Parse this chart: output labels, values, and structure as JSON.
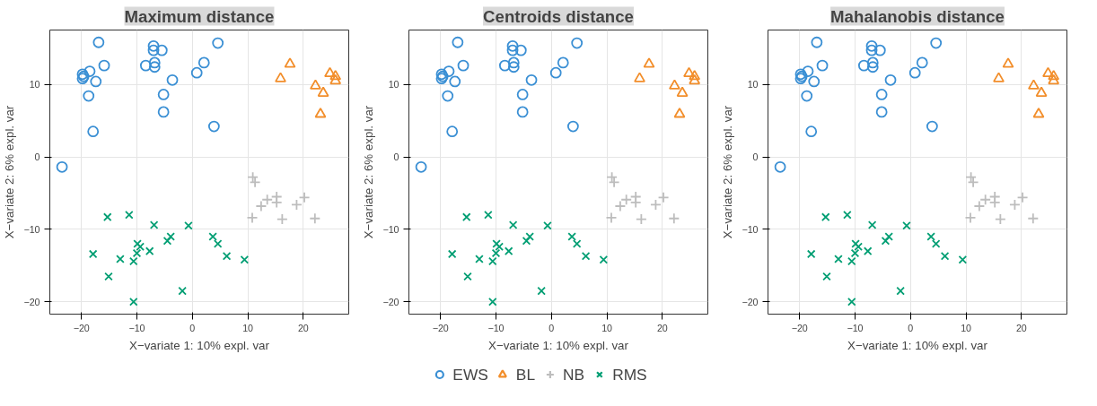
{
  "chart_data": [
    {
      "type": "scatter",
      "title": "Maximum distance",
      "xlabel": "X−variate 1: 10% expl. var",
      "ylabel": "X−variate 2: 6% expl. var",
      "xlim": [
        -25.7,
        28.2
      ],
      "ylim": [
        -21.7,
        17.5
      ],
      "xticks": [
        -20,
        -10,
        0,
        10,
        20
      ],
      "yticks": [
        -20,
        -10,
        0,
        10
      ],
      "grid": true,
      "legend": "bottom",
      "series": [
        {
          "name": "EWS",
          "color": "#3a8fd4",
          "marker": "circle",
          "x": [
            -16.9,
            -19.8,
            -19.6,
            -19.8,
            -18.5,
            -15.9,
            -17.4,
            -18.7,
            -17.9,
            -7.0,
            -7.0,
            -5.5,
            -8.4,
            -6.8,
            -6.8,
            -3.6,
            -5.2,
            -5.2,
            0.8,
            2.1,
            4.6,
            3.9,
            -23.5
          ],
          "values": [
            15.8,
            11.4,
            11.1,
            10.8,
            11.8,
            12.6,
            10.4,
            8.4,
            3.5,
            15.3,
            14.7,
            14.7,
            12.6,
            13.0,
            12.4,
            10.6,
            8.6,
            6.2,
            11.6,
            13.0,
            15.7,
            4.2,
            -1.4
          ]
        },
        {
          "name": "BL",
          "color": "#f28e2b",
          "marker": "triangle",
          "x": [
            17.6,
            15.9,
            22.2,
            23.6,
            23.1,
            24.8,
            25.8,
            25.8
          ],
          "values": [
            12.8,
            10.8,
            9.8,
            8.8,
            5.9,
            11.5,
            11.1,
            10.5
          ]
        },
        {
          "name": "NB",
          "color": "#bdbdbd",
          "marker": "plus",
          "x": [
            10.9,
            11.3,
            10.8,
            12.4,
            13.5,
            15.2,
            15.2,
            16.2,
            18.8,
            20.2,
            22.1
          ],
          "values": [
            -2.8,
            -3.5,
            -8.4,
            -6.8,
            -5.9,
            -5.5,
            -6.3,
            -8.6,
            -6.6,
            -5.6,
            -8.5
          ]
        },
        {
          "name": "RMS",
          "color": "#009e73",
          "marker": "cross",
          "x": [
            -15.3,
            -11.4,
            -6.9,
            -0.7,
            -17.9,
            -13.0,
            -9.9,
            -9.4,
            -10.0,
            -10.6,
            -7.7,
            -4.5,
            -3.9,
            3.7,
            4.6,
            6.2,
            9.4,
            -15.1,
            -10.6,
            -1.8
          ],
          "values": [
            -8.3,
            -8.0,
            -9.4,
            -9.5,
            -13.4,
            -14.1,
            -12.0,
            -12.4,
            -13.3,
            -14.4,
            -13.0,
            -11.6,
            -11.0,
            -11.0,
            -12.0,
            -13.7,
            -14.2,
            -16.5,
            -20.0,
            -18.5
          ]
        }
      ]
    },
    {
      "type": "scatter",
      "title": "Centroids distance",
      "xlabel": "X−variate 1: 10% expl. var",
      "ylabel": "X−variate 2: 6% expl. var",
      "xlim": [
        -25.7,
        28.2
      ],
      "ylim": [
        -21.7,
        17.5
      ],
      "xticks": [
        -20,
        -10,
        0,
        10,
        20
      ],
      "yticks": [
        -20,
        -10,
        0,
        10
      ],
      "grid": true,
      "series": [
        {
          "color": "#3a8fd4",
          "marker": "circle",
          "x": [
            -16.9,
            -19.8,
            -19.6,
            -19.8,
            -18.5,
            -15.9,
            -17.4,
            -18.7,
            -17.9,
            -7.0,
            -7.0,
            -5.5,
            -8.4,
            -6.8,
            -6.8,
            -3.6,
            -5.2,
            -5.2,
            0.8,
            2.1,
            4.6,
            3.9,
            -23.5
          ],
          "values": [
            15.8,
            11.4,
            11.1,
            10.8,
            11.8,
            12.6,
            10.4,
            8.4,
            3.5,
            15.3,
            14.7,
            14.7,
            12.6,
            13.0,
            12.4,
            10.6,
            8.6,
            6.2,
            11.6,
            13.0,
            15.7,
            4.2,
            -1.4
          ]
        },
        {
          "color": "#f28e2b",
          "marker": "triangle",
          "x": [
            17.6,
            15.9,
            22.2,
            23.6,
            23.1,
            24.8,
            25.8,
            25.8
          ],
          "values": [
            12.8,
            10.8,
            9.8,
            8.8,
            5.9,
            11.5,
            11.1,
            10.5
          ]
        },
        {
          "color": "#bdbdbd",
          "marker": "plus",
          "x": [
            10.9,
            11.3,
            10.8,
            12.4,
            13.5,
            15.2,
            15.2,
            16.2,
            18.8,
            20.2,
            22.1
          ],
          "values": [
            -2.8,
            -3.5,
            -8.4,
            -6.8,
            -5.9,
            -5.5,
            -6.3,
            -8.6,
            -6.6,
            -5.6,
            -8.5
          ]
        },
        {
          "color": "#009e73",
          "marker": "cross",
          "x": [
            -15.3,
            -11.4,
            -6.9,
            -0.7,
            -17.9,
            -13.0,
            -9.9,
            -9.4,
            -10.0,
            -10.6,
            -7.7,
            -4.5,
            -3.9,
            3.7,
            4.6,
            6.2,
            9.4,
            -15.1,
            -10.6,
            -1.8
          ],
          "values": [
            -8.3,
            -8.0,
            -9.4,
            -9.5,
            -13.4,
            -14.1,
            -12.0,
            -12.4,
            -13.3,
            -14.4,
            -13.0,
            -11.6,
            -11.0,
            -11.0,
            -12.0,
            -13.7,
            -14.2,
            -16.5,
            -20.0,
            -18.5
          ]
        }
      ]
    },
    {
      "type": "scatter",
      "title": "Mahalanobis distance",
      "xlabel": "X−variate 1: 10% expl. var",
      "ylabel": "X−variate 2: 6% expl. var",
      "xlim": [
        -25.7,
        28.2
      ],
      "ylim": [
        -21.7,
        17.5
      ],
      "xticks": [
        -20,
        -10,
        0,
        10,
        20
      ],
      "yticks": [
        -20,
        -10,
        0,
        10
      ],
      "grid": true,
      "series": [
        {
          "color": "#3a8fd4",
          "marker": "circle",
          "x": [
            -16.9,
            -19.8,
            -19.6,
            -19.8,
            -18.5,
            -15.9,
            -17.4,
            -18.7,
            -17.9,
            -7.0,
            -7.0,
            -5.5,
            -8.4,
            -6.8,
            -6.8,
            -3.6,
            -5.2,
            -5.2,
            0.8,
            2.1,
            4.6,
            3.9,
            -23.5
          ],
          "values": [
            15.8,
            11.4,
            11.1,
            10.8,
            11.8,
            12.6,
            10.4,
            8.4,
            3.5,
            15.3,
            14.7,
            14.7,
            12.6,
            13.0,
            12.4,
            10.6,
            8.6,
            6.2,
            11.6,
            13.0,
            15.7,
            4.2,
            -1.4
          ]
        },
        {
          "color": "#f28e2b",
          "marker": "triangle",
          "x": [
            17.6,
            15.9,
            22.2,
            23.6,
            23.1,
            24.8,
            25.8,
            25.8
          ],
          "values": [
            12.8,
            10.8,
            9.8,
            8.8,
            5.9,
            11.5,
            11.1,
            10.5
          ]
        },
        {
          "color": "#bdbdbd",
          "marker": "plus",
          "x": [
            10.9,
            11.3,
            10.8,
            12.4,
            13.5,
            15.2,
            15.2,
            16.2,
            18.8,
            20.2,
            22.1
          ],
          "values": [
            -2.8,
            -3.5,
            -8.4,
            -6.8,
            -5.9,
            -5.5,
            -6.3,
            -8.6,
            -6.6,
            -5.6,
            -8.5
          ]
        },
        {
          "color": "#009e73",
          "marker": "cross",
          "x": [
            -15.3,
            -11.4,
            -6.9,
            -0.7,
            -17.9,
            -13.0,
            -9.9,
            -9.4,
            -10.0,
            -10.6,
            -7.7,
            -4.5,
            -3.9,
            3.7,
            4.6,
            6.2,
            9.4,
            -15.1,
            -10.6,
            -1.8
          ],
          "values": [
            -8.3,
            -8.0,
            -9.4,
            -9.5,
            -13.4,
            -14.1,
            -12.0,
            -12.4,
            -13.3,
            -14.4,
            -13.0,
            -11.6,
            -11.0,
            -11.0,
            -12.0,
            -13.7,
            -14.2,
            -16.5,
            -20.0,
            -18.5
          ]
        }
      ]
    }
  ]
}
